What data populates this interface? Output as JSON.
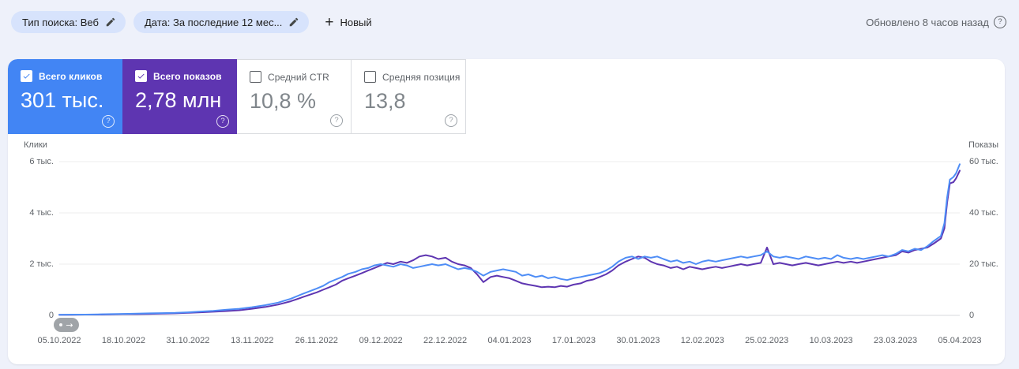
{
  "filters": {
    "search_type": "Тип поиска: Веб",
    "date": "Дата: За последние 12 мес...",
    "plus": "+",
    "new_label": "Новый"
  },
  "status": {
    "updated": "Обновлено 8 часов назад",
    "help": "?"
  },
  "cards": [
    {
      "label": "Всего кликов",
      "value": "301 тыс.",
      "checked": true,
      "color": "#4285f4",
      "help": "?"
    },
    {
      "label": "Всего показов",
      "value": "2,78 млн",
      "checked": true,
      "color": "#5e35b1",
      "help": "?"
    },
    {
      "label": "Средний CTR",
      "value": "10,8 %",
      "checked": false,
      "color": "",
      "help": "?"
    },
    {
      "label": "Средняя позиция",
      "value": "13,8",
      "checked": false,
      "color": "",
      "help": "?"
    }
  ],
  "chart_data": {
    "type": "line",
    "grid": true,
    "left_axis": {
      "label": "Клики",
      "ticks": [
        "0",
        "2 тыс.",
        "4 тыс.",
        "6 тыс."
      ],
      "tick_values": [
        0,
        2,
        4,
        6
      ],
      "range": [
        0,
        6
      ],
      "unit": "тыс."
    },
    "right_axis": {
      "label": "Показы",
      "ticks": [
        "0",
        "20 тыс.",
        "40 тыс.",
        "60 тыс."
      ],
      "tick_values": [
        0,
        20,
        40,
        60
      ],
      "range": [
        0,
        60
      ],
      "unit": "тыс."
    },
    "x_tick_labels": [
      "05.10.2022",
      "18.10.2022",
      "31.10.2022",
      "13.11.2022",
      "26.11.2022",
      "09.12.2022",
      "22.12.2022",
      "04.01.2023",
      "17.01.2023",
      "30.01.2023",
      "12.02.2023",
      "25.02.2023",
      "10.03.2023",
      "23.03.2023",
      "05.04.2023"
    ],
    "x": [
      0,
      0.014,
      0.029,
      0.043,
      0.057,
      0.071,
      0.086,
      0.1,
      0.114,
      0.129,
      0.143,
      0.157,
      0.171,
      0.186,
      0.2,
      0.214,
      0.229,
      0.243,
      0.257,
      0.271,
      0.286,
      0.293,
      0.3,
      0.307,
      0.314,
      0.321,
      0.329,
      0.336,
      0.343,
      0.35,
      0.357,
      0.364,
      0.371,
      0.379,
      0.386,
      0.393,
      0.4,
      0.407,
      0.414,
      0.421,
      0.429,
      0.436,
      0.443,
      0.45,
      0.457,
      0.464,
      0.471,
      0.479,
      0.486,
      0.493,
      0.5,
      0.507,
      0.514,
      0.521,
      0.529,
      0.536,
      0.543,
      0.55,
      0.557,
      0.564,
      0.571,
      0.579,
      0.586,
      0.593,
      0.6,
      0.607,
      0.614,
      0.621,
      0.629,
      0.636,
      0.643,
      0.65,
      0.657,
      0.664,
      0.671,
      0.679,
      0.686,
      0.693,
      0.7,
      0.707,
      0.714,
      0.721,
      0.729,
      0.736,
      0.743,
      0.75,
      0.757,
      0.764,
      0.771,
      0.779,
      0.786,
      0.793,
      0.8,
      0.807,
      0.814,
      0.821,
      0.829,
      0.836,
      0.843,
      0.85,
      0.857,
      0.864,
      0.871,
      0.879,
      0.886,
      0.893,
      0.9,
      0.907,
      0.914,
      0.921,
      0.929,
      0.936,
      0.943,
      0.95,
      0.957,
      0.964,
      0.971,
      0.979,
      0.983,
      0.986,
      0.989,
      0.993,
      0.996,
      1
    ],
    "series": [
      {
        "name": "Клики",
        "axis": "left",
        "color": "#4e8df6",
        "unit": "тыс.",
        "values": [
          0.02,
          0.03,
          0.03,
          0.04,
          0.05,
          0.06,
          0.07,
          0.08,
          0.09,
          0.1,
          0.12,
          0.15,
          0.18,
          0.22,
          0.26,
          0.32,
          0.4,
          0.5,
          0.65,
          0.85,
          1.05,
          1.15,
          1.3,
          1.4,
          1.5,
          1.62,
          1.7,
          1.8,
          1.85,
          1.95,
          2,
          1.95,
          1.9,
          2,
          1.95,
          1.85,
          1.9,
          1.95,
          2,
          1.95,
          2,
          1.9,
          1.8,
          1.85,
          1.8,
          1.7,
          1.55,
          1.7,
          1.75,
          1.8,
          1.75,
          1.7,
          1.55,
          1.6,
          1.5,
          1.55,
          1.45,
          1.5,
          1.42,
          1.38,
          1.45,
          1.5,
          1.55,
          1.6,
          1.65,
          1.75,
          1.9,
          2.1,
          2.25,
          2.3,
          2.2,
          2.3,
          2.25,
          2.3,
          2.2,
          2.1,
          2.15,
          2.05,
          2.1,
          2,
          2.1,
          2.15,
          2.1,
          2.15,
          2.2,
          2.25,
          2.3,
          2.25,
          2.3,
          2.35,
          2.5,
          2.3,
          2.25,
          2.3,
          2.25,
          2.2,
          2.3,
          2.25,
          2.2,
          2.25,
          2.2,
          2.35,
          2.25,
          2.2,
          2.25,
          2.2,
          2.25,
          2.3,
          2.35,
          2.3,
          2.4,
          2.55,
          2.5,
          2.6,
          2.55,
          2.7,
          2.9,
          3.1,
          3.6,
          4.6,
          5.3,
          5.4,
          5.55,
          5.9
        ]
      },
      {
        "name": "Показы",
        "axis": "right",
        "color": "#5e35b1",
        "unit": "тыс.",
        "values": [
          0.2,
          0.2,
          0.3,
          0.3,
          0.4,
          0.5,
          0.5,
          0.6,
          0.7,
          0.8,
          1,
          1.2,
          1.4,
          1.7,
          2,
          2.6,
          3.3,
          4.2,
          5.5,
          7.2,
          9,
          10,
          11,
          12,
          13.5,
          14.5,
          15.5,
          16.5,
          17.5,
          18.5,
          19.5,
          20.5,
          20,
          21,
          20.5,
          21.5,
          23,
          23.5,
          23,
          22,
          22.5,
          21,
          20,
          19.5,
          18.5,
          16,
          13,
          15,
          15.5,
          15,
          14.5,
          13.5,
          12.5,
          12,
          11.5,
          11,
          11.2,
          11,
          11.5,
          11.2,
          12,
          12.5,
          13.5,
          14,
          15,
          16,
          17.5,
          19.5,
          21,
          22,
          23,
          22.5,
          21,
          20,
          19.5,
          18.5,
          19,
          18,
          19,
          18.5,
          18,
          18.5,
          19,
          18.5,
          19,
          19.5,
          20,
          19.5,
          20,
          20.5,
          26.5,
          20,
          20.5,
          20,
          19.5,
          20,
          20.5,
          20,
          19.5,
          20,
          20.5,
          21,
          20.5,
          21,
          20.5,
          21,
          21.5,
          22,
          22.5,
          23,
          23.5,
          25,
          24.5,
          25.5,
          26,
          26.5,
          28,
          30,
          34,
          44,
          51.5,
          52,
          53.5,
          56.5
        ]
      }
    ]
  }
}
